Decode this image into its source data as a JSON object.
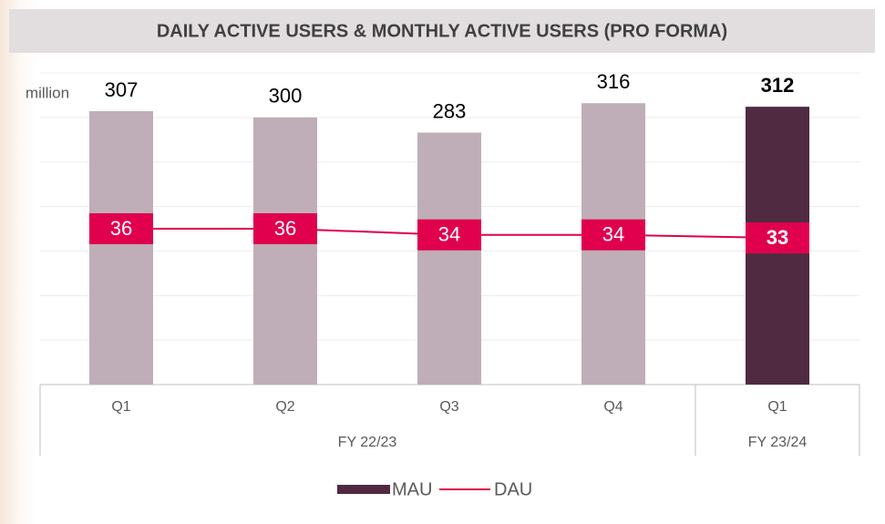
{
  "chart_data": {
    "type": "bar",
    "title": "DAILY ACTIVE USERS & MONTHLY ACTIVE USERS (PRO FORMA)",
    "ylabel": "million",
    "categories": [
      "Q1",
      "Q2",
      "Q3",
      "Q4",
      "Q1"
    ],
    "groups": [
      {
        "label": "FY 22/23",
        "span": 4
      },
      {
        "label": "FY 23/24",
        "span": 1
      }
    ],
    "series": [
      {
        "name": "MAU",
        "type": "bar",
        "color": "#4f2a40",
        "colors": [
          "#bfaeb7",
          "#bfaeb7",
          "#bfaeb7",
          "#bfaeb7",
          "#4f2a40"
        ],
        "label_weights": [
          "normal",
          "normal",
          "normal",
          "normal",
          "bold"
        ],
        "values": [
          307,
          300,
          283,
          316,
          312
        ]
      },
      {
        "name": "DAU",
        "type": "line",
        "axis": "y2",
        "color": "#e0004d",
        "label_weights": [
          "normal",
          "normal",
          "normal",
          "normal",
          "bold"
        ],
        "values": [
          36,
          36,
          34,
          34,
          33
        ]
      }
    ],
    "ylim": [
      0,
      350
    ],
    "yticks": [
      0,
      50,
      100,
      150,
      200,
      250,
      300,
      350
    ],
    "y2lim": [
      -15,
      87
    ],
    "grid": true,
    "legend": "bottom"
  }
}
